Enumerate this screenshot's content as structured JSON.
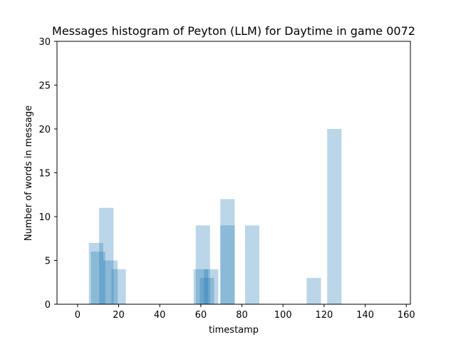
{
  "chart_data": {
    "type": "bar",
    "title": "Messages histogram of Peyton (LLM) for Daytime in game 0072",
    "xlabel": "timestamp",
    "ylabel": "Number of words in message",
    "xlim": [
      -10,
      162
    ],
    "ylim": [
      0,
      30
    ],
    "xticks": [
      0,
      20,
      40,
      60,
      80,
      100,
      120,
      140,
      160
    ],
    "yticks": [
      0,
      5,
      10,
      15,
      20,
      25,
      30
    ],
    "bar_width": 7,
    "bar_color": "#1f77b4",
    "bar_opacity": 0.3,
    "grid": false,
    "bars": [
      {
        "x": 9,
        "y": 7
      },
      {
        "x": 10,
        "y": 6
      },
      {
        "x": 14,
        "y": 11
      },
      {
        "x": 16,
        "y": 5
      },
      {
        "x": 20,
        "y": 4
      },
      {
        "x": 60,
        "y": 4
      },
      {
        "x": 61,
        "y": 9
      },
      {
        "x": 63,
        "y": 3
      },
      {
        "x": 65,
        "y": 4
      },
      {
        "x": 73,
        "y": 12
      },
      {
        "x": 73,
        "y": 9
      },
      {
        "x": 85,
        "y": 9
      },
      {
        "x": 115,
        "y": 3
      },
      {
        "x": 125,
        "y": 20
      }
    ]
  }
}
